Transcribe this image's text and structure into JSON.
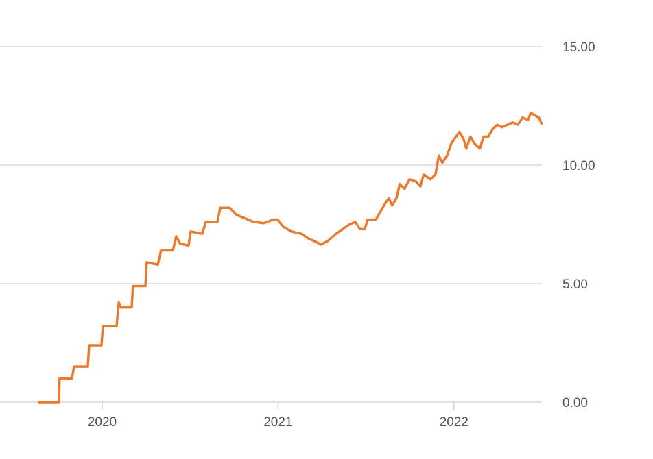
{
  "chart_data": {
    "type": "line",
    "x": [
      2019.641,
      2019.754,
      2019.758,
      2019.828,
      2019.84,
      2019.918,
      2019.926,
      2019.996,
      2020.004,
      2020.082,
      2020.094,
      2020.105,
      2020.168,
      2020.175,
      2020.246,
      2020.253,
      2020.316,
      2020.335,
      2020.402,
      2020.421,
      2020.441,
      2020.491,
      2020.503,
      2020.569,
      2020.589,
      2020.655,
      2020.671,
      2020.725,
      2020.764,
      2020.862,
      2020.92,
      2020.971,
      2020.998,
      2021.029,
      2021.076,
      2021.135,
      2021.173,
      2021.205,
      2021.244,
      2021.283,
      2021.329,
      2021.368,
      2021.407,
      2021.439,
      2021.466,
      2021.493,
      2021.509,
      2021.556,
      2021.587,
      2021.61,
      2021.63,
      2021.649,
      2021.673,
      2021.692,
      2021.719,
      2021.747,
      2021.786,
      2021.809,
      2021.828,
      2021.867,
      2021.895,
      2021.914,
      2021.934,
      2021.961,
      2021.984,
      2022.012,
      2022.031,
      2022.055,
      2022.07,
      2022.094,
      2022.117,
      2022.148,
      2022.168,
      2022.195,
      2022.218,
      2022.246,
      2022.273,
      2022.304,
      2022.335,
      2022.363,
      2022.39,
      2022.421,
      2022.437,
      2022.46,
      2022.483,
      2022.499
    ],
    "values": [
      0.0,
      0.0,
      1.0,
      1.0,
      1.5,
      1.5,
      2.4,
      2.4,
      3.2,
      3.2,
      4.2,
      4.0,
      4.0,
      4.9,
      4.9,
      5.9,
      5.8,
      6.4,
      6.4,
      7.0,
      6.7,
      6.6,
      7.2,
      7.1,
      7.6,
      7.6,
      8.2,
      8.2,
      7.9,
      7.6,
      7.55,
      7.7,
      7.7,
      7.4,
      7.2,
      7.1,
      6.9,
      6.8,
      6.65,
      6.8,
      7.1,
      7.3,
      7.5,
      7.6,
      7.3,
      7.3,
      7.7,
      7.7,
      8.1,
      8.4,
      8.6,
      8.3,
      8.6,
      9.2,
      9.0,
      9.4,
      9.3,
      9.1,
      9.6,
      9.4,
      9.6,
      10.4,
      10.1,
      10.4,
      10.9,
      11.2,
      11.4,
      11.1,
      10.7,
      11.2,
      10.9,
      10.7,
      11.2,
      11.2,
      11.5,
      11.7,
      11.6,
      11.7,
      11.8,
      11.7,
      12.0,
      11.9,
      12.2,
      12.1,
      12.0,
      11.75
    ],
    "color": "#e97a2e",
    "xlim": [
      2019.419,
      2022.5
    ],
    "xticks": [
      2020,
      2021,
      2022
    ],
    "ylim": [
      0,
      15
    ],
    "yticks": [
      {
        "value": 0,
        "label": "0.00"
      },
      {
        "value": 5,
        "label": "5.00"
      },
      {
        "value": 10,
        "label": "10.00"
      },
      {
        "value": 15,
        "label": "15.00"
      }
    ],
    "grid": true
  }
}
